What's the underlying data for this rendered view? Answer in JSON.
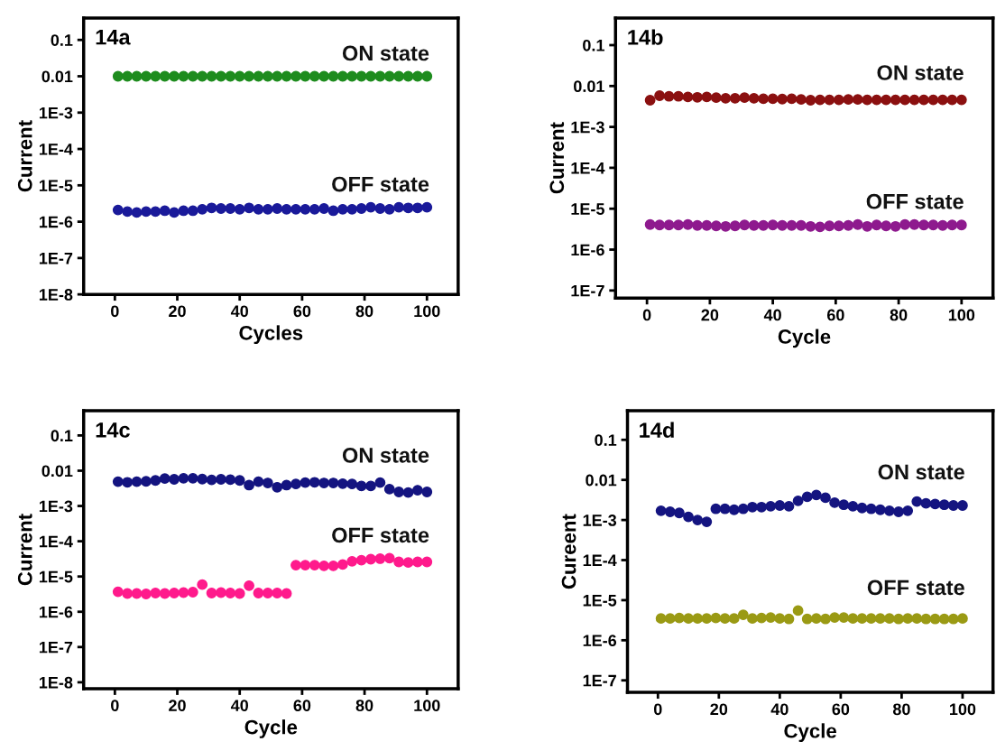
{
  "chart_data": [
    {
      "type": "scatter",
      "title": "14a",
      "xlabel": "Cycles",
      "ylabel": "Current",
      "log": "y",
      "marker": "circle",
      "grid": false,
      "legend": false,
      "xlim": [
        -10,
        110
      ],
      "xticks": [
        0,
        20,
        40,
        60,
        80,
        100
      ],
      "ylim": [
        1e-08,
        0.4
      ],
      "yticks": [
        {
          "value": 1e-08,
          "label": "1E-8"
        },
        {
          "value": 1e-07,
          "label": "1E-7"
        },
        {
          "value": 1e-06,
          "label": "1E-6"
        },
        {
          "value": 1e-05,
          "label": "1E-5"
        },
        {
          "value": 0.0001,
          "label": "1E-4"
        },
        {
          "value": 0.001,
          "label": "1E-3"
        },
        {
          "value": 0.01,
          "label": "0.01"
        },
        {
          "value": 0.1,
          "label": "0.1"
        }
      ],
      "x": [
        1,
        4,
        7,
        10,
        13,
        16,
        19,
        22,
        25,
        28,
        31,
        34,
        37,
        40,
        43,
        46,
        49,
        52,
        55,
        58,
        61,
        64,
        67,
        70,
        73,
        76,
        79,
        82,
        85,
        88,
        91,
        94,
        97,
        100
      ],
      "series": [
        {
          "name": "ON state",
          "color": "#1e8c1e",
          "values": [
            0.01,
            0.01,
            0.01,
            0.01,
            0.01,
            0.01,
            0.01,
            0.01,
            0.01,
            0.01,
            0.01,
            0.01,
            0.01,
            0.01,
            0.01,
            0.01,
            0.01,
            0.01,
            0.01,
            0.01,
            0.01,
            0.01,
            0.01,
            0.01,
            0.01,
            0.01,
            0.01,
            0.01,
            0.01,
            0.01,
            0.01,
            0.01,
            0.01,
            0.01
          ]
        },
        {
          "name": "OFF state",
          "color": "#1a1a9a",
          "values": [
            2.1e-06,
            1.9e-06,
            1.8e-06,
            1.9e-06,
            1.9e-06,
            2e-06,
            1.8e-06,
            2e-06,
            2e-06,
            2.2e-06,
            2.4e-06,
            2.3e-06,
            2.3e-06,
            2.2e-06,
            2.4e-06,
            2.2e-06,
            2.2e-06,
            2.3e-06,
            2.2e-06,
            2.2e-06,
            2.2e-06,
            2.2e-06,
            2.3e-06,
            2e-06,
            2.2e-06,
            2.2e-06,
            2.3e-06,
            2.5e-06,
            2.3e-06,
            2.2e-06,
            2.5e-06,
            2.4e-06,
            2.4e-06,
            2.5e-06
          ]
        }
      ]
    },
    {
      "type": "scatter",
      "title": "14b",
      "xlabel": "Cycle",
      "ylabel": "Current",
      "log": "y",
      "marker": "circle",
      "grid": false,
      "legend": false,
      "xlim": [
        -10,
        110
      ],
      "xticks": [
        0,
        20,
        40,
        60,
        80,
        100
      ],
      "ylim": [
        6.5e-08,
        0.46
      ],
      "yticks": [
        {
          "value": 1e-07,
          "label": "1E-7"
        },
        {
          "value": 1e-06,
          "label": "1E-6"
        },
        {
          "value": 1e-05,
          "label": "1E-5"
        },
        {
          "value": 0.0001,
          "label": "1E-4"
        },
        {
          "value": 0.001,
          "label": "1E-3"
        },
        {
          "value": 0.01,
          "label": "0.01"
        },
        {
          "value": 0.1,
          "label": "0.1"
        }
      ],
      "x": [
        1,
        4,
        7,
        10,
        13,
        16,
        19,
        22,
        25,
        28,
        31,
        34,
        37,
        40,
        43,
        46,
        49,
        52,
        55,
        58,
        61,
        64,
        67,
        70,
        73,
        76,
        79,
        82,
        85,
        88,
        91,
        94,
        97,
        100
      ],
      "series": [
        {
          "name": "ON state",
          "color": "#8b1010",
          "values": [
            0.0045,
            0.0058,
            0.0056,
            0.0056,
            0.0054,
            0.0053,
            0.0054,
            0.0052,
            0.005,
            0.005,
            0.0052,
            0.005,
            0.0049,
            0.0049,
            0.0048,
            0.0049,
            0.0047,
            0.0045,
            0.0046,
            0.0046,
            0.0046,
            0.0047,
            0.0047,
            0.0046,
            0.0046,
            0.0046,
            0.0046,
            0.0046,
            0.0046,
            0.0046,
            0.0046,
            0.0046,
            0.0046,
            0.0046
          ]
        },
        {
          "name": "OFF state",
          "color": "#8e1a8e",
          "values": [
            4.1e-06,
            4e-06,
            4e-06,
            4e-06,
            4.1e-06,
            3.9e-06,
            3.9e-06,
            3.8e-06,
            3.7e-06,
            3.8e-06,
            4e-06,
            3.9e-06,
            3.9e-06,
            4e-06,
            3.9e-06,
            3.9e-06,
            3.9e-06,
            3.7e-06,
            3.6e-06,
            3.8e-06,
            3.8e-06,
            3.9e-06,
            4.1e-06,
            3.7e-06,
            4e-06,
            3.8e-06,
            3.7e-06,
            4.1e-06,
            4.1e-06,
            4e-06,
            4e-06,
            3.9e-06,
            4e-06,
            4e-06
          ]
        }
      ]
    },
    {
      "type": "scatter",
      "title": "14c",
      "xlabel": "Cycle",
      "ylabel": "Current",
      "log": "y",
      "marker": "circle",
      "grid": false,
      "legend": false,
      "xlim": [
        -10,
        110
      ],
      "xticks": [
        0,
        20,
        40,
        60,
        80,
        100
      ],
      "ylim": [
        6.6e-09,
        0.5
      ],
      "yticks": [
        {
          "value": 1e-08,
          "label": "1E-8"
        },
        {
          "value": 1e-07,
          "label": "1E-7"
        },
        {
          "value": 1e-06,
          "label": "1E-6"
        },
        {
          "value": 1e-05,
          "label": "1E-5"
        },
        {
          "value": 0.0001,
          "label": "1E-4"
        },
        {
          "value": 0.001,
          "label": "1E-3"
        },
        {
          "value": 0.01,
          "label": "0.01"
        },
        {
          "value": 0.1,
          "label": "0.1"
        }
      ],
      "x": [
        1,
        4,
        7,
        10,
        13,
        16,
        19,
        22,
        25,
        28,
        31,
        34,
        37,
        40,
        43,
        46,
        49,
        52,
        55,
        58,
        61,
        64,
        67,
        70,
        73,
        76,
        79,
        82,
        85,
        88,
        91,
        94,
        97,
        100
      ],
      "series": [
        {
          "name": "ON state",
          "color": "#141480",
          "values": [
            0.0049,
            0.0047,
            0.0049,
            0.005,
            0.0053,
            0.006,
            0.0057,
            0.0061,
            0.0061,
            0.0058,
            0.0055,
            0.0057,
            0.0056,
            0.0053,
            0.0039,
            0.0049,
            0.0045,
            0.0034,
            0.0039,
            0.0042,
            0.0046,
            0.0047,
            0.0045,
            0.0045,
            0.0043,
            0.0042,
            0.0037,
            0.0037,
            0.0046,
            0.003,
            0.0025,
            0.0024,
            0.0028,
            0.0025
          ]
        },
        {
          "name": "OFF state",
          "color": "#ff1a8c",
          "values": [
            3.7e-06,
            3.3e-06,
            3.3e-06,
            3.2e-06,
            3.4e-06,
            3.3e-06,
            3.4e-06,
            3.5e-06,
            3.6e-06,
            5.9e-06,
            3.4e-06,
            3.5e-06,
            3.4e-06,
            3.3e-06,
            5.5e-06,
            3.4e-06,
            3.4e-06,
            3.4e-06,
            3.3e-06,
            2.1e-05,
            2.1e-05,
            2.1e-05,
            2e-05,
            2e-05,
            2.2e-05,
            2.7e-05,
            2.9e-05,
            3.1e-05,
            3.2e-05,
            3.3e-05,
            2.6e-05,
            2.5e-05,
            2.6e-05,
            2.6e-05
          ]
        }
      ]
    },
    {
      "type": "scatter",
      "title": "14d",
      "xlabel": "Cycle",
      "ylabel": "Cureent",
      "log": "y",
      "marker": "circle",
      "grid": false,
      "legend": false,
      "xlim": [
        -10,
        110
      ],
      "xticks": [
        0,
        20,
        40,
        60,
        80,
        100
      ],
      "ylim": [
        5e-08,
        0.53
      ],
      "yticks": [
        {
          "value": 1e-07,
          "label": "1E-7"
        },
        {
          "value": 1e-06,
          "label": "1E-6"
        },
        {
          "value": 1e-05,
          "label": "1E-5"
        },
        {
          "value": 0.0001,
          "label": "1E-4"
        },
        {
          "value": 0.001,
          "label": "1E-3"
        },
        {
          "value": 0.01,
          "label": "0.01"
        },
        {
          "value": 0.1,
          "label": "0.1"
        }
      ],
      "x": [
        1,
        4,
        7,
        10,
        13,
        16,
        19,
        22,
        25,
        28,
        31,
        34,
        37,
        40,
        43,
        46,
        49,
        52,
        55,
        58,
        61,
        64,
        67,
        70,
        73,
        76,
        79,
        82,
        85,
        88,
        91,
        94,
        97,
        100
      ],
      "series": [
        {
          "name": "ON state",
          "color": "#141480",
          "values": [
            0.0017,
            0.0016,
            0.0015,
            0.0012,
            0.001,
            0.0009,
            0.0019,
            0.0019,
            0.0018,
            0.0019,
            0.0021,
            0.0021,
            0.0022,
            0.0023,
            0.0022,
            0.003,
            0.0038,
            0.0042,
            0.0036,
            0.0027,
            0.0024,
            0.0022,
            0.002,
            0.0019,
            0.0018,
            0.0017,
            0.0016,
            0.0017,
            0.0029,
            0.0026,
            0.0025,
            0.0024,
            0.0023,
            0.0023
          ]
        },
        {
          "name": "OFF state",
          "color": "#9a9a14",
          "values": [
            3.5e-06,
            3.5e-06,
            3.6e-06,
            3.5e-06,
            3.5e-06,
            3.5e-06,
            3.6e-06,
            3.5e-06,
            3.5e-06,
            4.3e-06,
            3.5e-06,
            3.6e-06,
            3.7e-06,
            3.5e-06,
            3.4e-06,
            5.5e-06,
            3.4e-06,
            3.5e-06,
            3.4e-06,
            3.7e-06,
            3.7e-06,
            3.5e-06,
            3.5e-06,
            3.5e-06,
            3.5e-06,
            3.5e-06,
            3.4e-06,
            3.5e-06,
            3.5e-06,
            3.4e-06,
            3.4e-06,
            3.4e-06,
            3.4e-06,
            3.5e-06
          ]
        }
      ]
    }
  ]
}
